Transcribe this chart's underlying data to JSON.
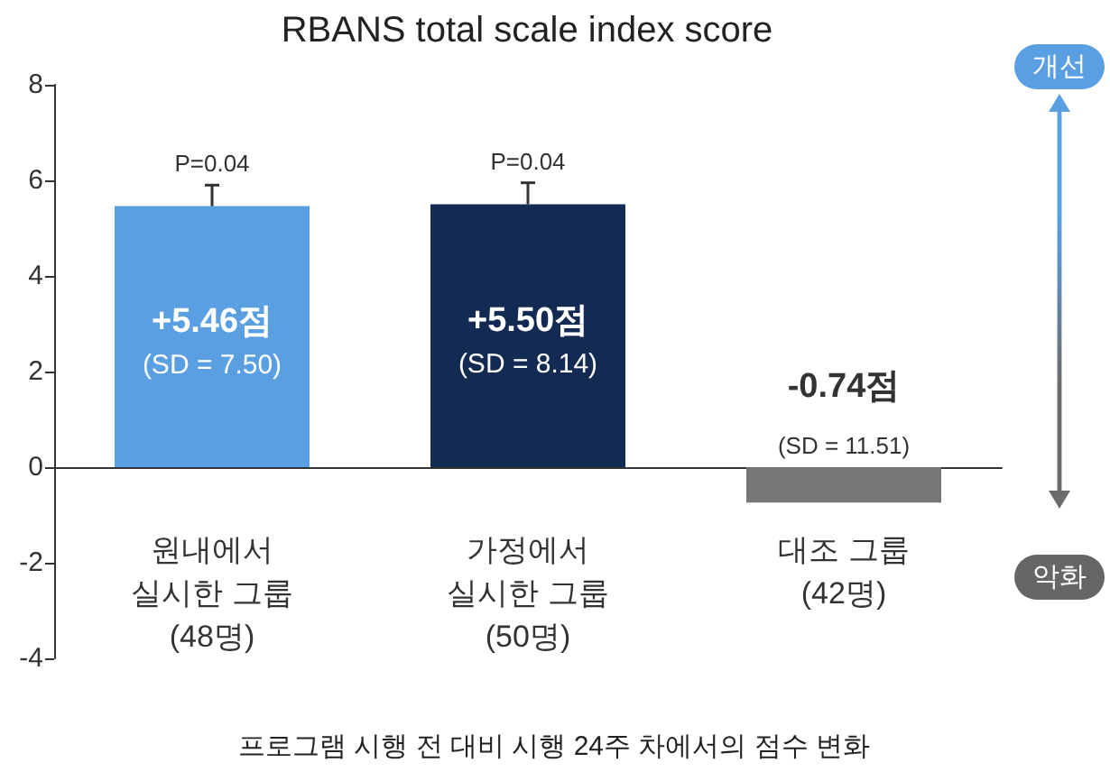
{
  "chart_data": {
    "type": "bar",
    "title": "RBANS total scale index score",
    "categories": [
      "원내에서\n실시한 그룹\n(48명)",
      "가정에서\n실시한 그룹\n(50명)",
      "대조 그룹\n(42명)"
    ],
    "values": [
      5.46,
      5.5,
      -0.74
    ],
    "colors": [
      "#5a9fe2",
      "#132b52",
      "#767676"
    ],
    "errors": [
      [
        5.46,
        5.9
      ],
      [
        5.5,
        5.95
      ],
      null
    ],
    "value_labels": [
      "+5.46점",
      "+5.50점",
      "-0.74점"
    ],
    "ylim": [
      -4,
      8
    ],
    "yticks": [
      -4,
      -2,
      0,
      2,
      4,
      6,
      8
    ],
    "grid": false,
    "annotations": [
      "P=0.04",
      "P=0.04",
      "(SD = 7.50)",
      "(SD = 8.14)",
      "(SD = 11.51)",
      "개선",
      "악화",
      "프로그램 시행 전 대비 시행 24주 차에서의 점수 변화"
    ]
  }
}
